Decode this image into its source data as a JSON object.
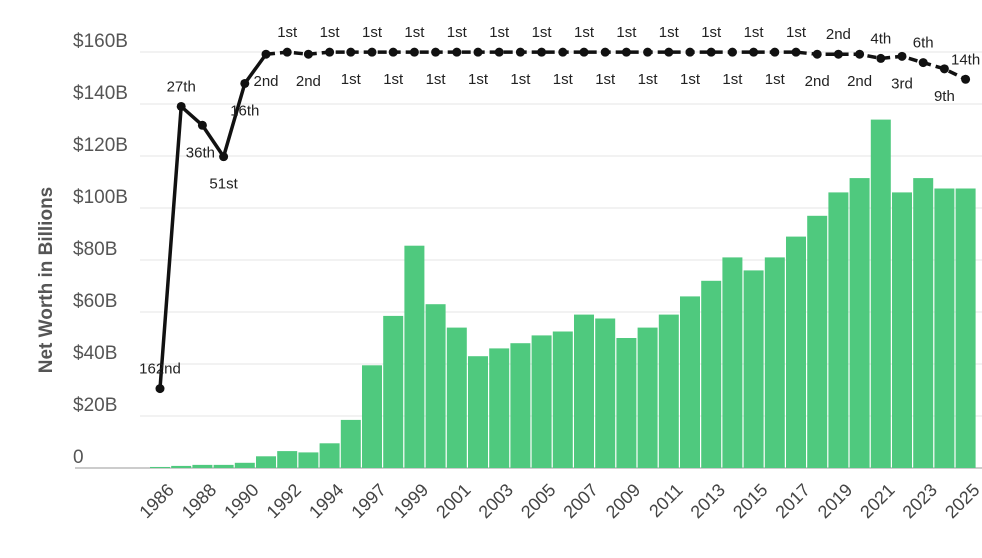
{
  "chart_data": {
    "type": "bar",
    "ylabel": "Net Worth in Billions",
    "categories": [
      "1986",
      null,
      "1988",
      null,
      "1990",
      null,
      "1992",
      null,
      "1994",
      null,
      "1997",
      null,
      "1999",
      null,
      "2001",
      null,
      "2003",
      null,
      "2005",
      null,
      "2007",
      null,
      "2009",
      null,
      "2011",
      null,
      "2013",
      null,
      "2015",
      null,
      "2017",
      null,
      "2019",
      null,
      "2021",
      null,
      "2023",
      null,
      "2025"
    ],
    "ylim": [
      0,
      172
    ],
    "yticks": [
      0,
      {
        "value": 20,
        "label": "$20B"
      },
      {
        "value": 40,
        "label": "$40B"
      },
      {
        "value": 60,
        "label": "$60B"
      },
      {
        "value": 80,
        "label": "$80B"
      },
      {
        "value": 100,
        "label": "$100B"
      },
      {
        "value": 120,
        "label": "$120B"
      },
      {
        "value": 140,
        "label": "$140B"
      },
      {
        "value": 160,
        "label": "$160B"
      }
    ],
    "y2lim": [
      200,
      -14
    ],
    "grid": true,
    "series": [
      {
        "type": "bar",
        "color": "#4fc97e",
        "values": [
          0.4,
          0.8,
          1.2,
          1.2,
          2,
          4.5,
          6.5,
          6,
          9.5,
          18.5,
          39.5,
          58.5,
          85.5,
          63,
          54,
          43,
          46,
          48,
          51,
          52.5,
          59,
          57.5,
          50,
          54,
          59,
          66,
          72,
          81,
          76,
          81,
          89,
          97,
          106,
          111.5,
          134,
          106,
          111.5,
          107.5,
          107.5
        ]
      },
      {
        "type": "line",
        "axis": "y2",
        "color": "#111111",
        "values": [
          162,
          27,
          36,
          51,
          16,
          2,
          1,
          2,
          1,
          1,
          1,
          1,
          1,
          1,
          1,
          1,
          1,
          1,
          1,
          1,
          1,
          1,
          1,
          1,
          1,
          1,
          1,
          1,
          1,
          1,
          1,
          2,
          2,
          2,
          4,
          3,
          6,
          9,
          14
        ],
        "value_labels": [
          "162nd",
          "27th",
          "36th",
          "51st",
          "16th",
          "2nd",
          "1st",
          "2nd",
          "1st",
          "1st",
          "1st",
          "1st",
          "1st",
          "1st",
          "1st",
          "1st",
          "1st",
          "1st",
          "1st",
          "1st",
          "1st",
          "1st",
          "1st",
          "1st",
          "1st",
          "1st",
          "1st",
          "1st",
          "1st",
          "1st",
          "1st",
          "2nd",
          "2nd",
          "2nd",
          "4th",
          "3rd",
          "6th",
          "9th",
          "14th"
        ]
      }
    ]
  }
}
